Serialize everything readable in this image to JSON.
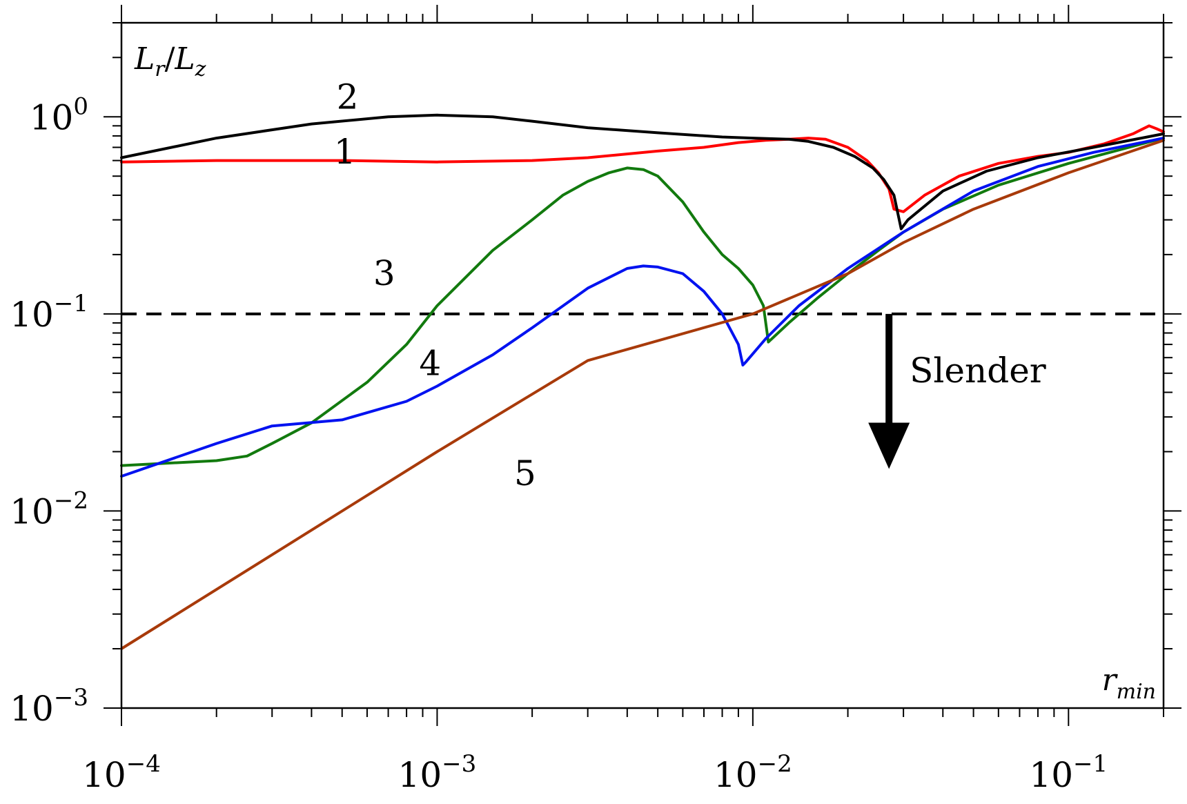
{
  "chart_data": {
    "type": "line",
    "xscale": "log",
    "yscale": "log",
    "xlim": [
      0.0001,
      0.2
    ],
    "ylim": [
      0.001,
      3
    ],
    "xlabel": "r",
    "xlabel_sub": "min",
    "ylabel_num": "L",
    "ylabel_num_sub": "r",
    "ylabel_slash": "/",
    "ylabel_den": "L",
    "ylabel_den_sub": "z",
    "x_ticks": [
      {
        "value": 0.0001,
        "base": "10",
        "exp": "−4"
      },
      {
        "value": 0.001,
        "base": "10",
        "exp": "−3"
      },
      {
        "value": 0.01,
        "base": "10",
        "exp": "−2"
      },
      {
        "value": 0.1,
        "base": "10",
        "exp": "−1"
      }
    ],
    "y_ticks": [
      {
        "value": 0.001,
        "base": "10",
        "exp": "−3"
      },
      {
        "value": 0.01,
        "base": "10",
        "exp": "−2"
      },
      {
        "value": 0.1,
        "base": "10",
        "exp": "−1"
      },
      {
        "value": 1,
        "base": "10",
        "exp": "0"
      }
    ],
    "threshold": {
      "y": 0.1,
      "style": "dashed",
      "color": "#000000"
    },
    "arrow_annotation": {
      "text": "Slender",
      "x": 0.027,
      "y_from": 0.1,
      "y_to": 0.018
    },
    "series": [
      {
        "label": "1",
        "color": "#ff0000",
        "label_pos": [
          0.00051,
          0.58
        ],
        "x": [
          0.0001,
          0.0002,
          0.0005,
          0.001,
          0.002,
          0.003,
          0.005,
          0.007,
          0.009,
          0.011,
          0.013,
          0.015,
          0.017,
          0.02,
          0.023,
          0.025,
          0.027,
          0.028,
          0.03,
          0.035,
          0.045,
          0.06,
          0.08,
          0.1,
          0.13,
          0.16,
          0.18,
          0.19,
          0.2
        ],
        "y": [
          0.59,
          0.6,
          0.6,
          0.59,
          0.6,
          0.62,
          0.67,
          0.7,
          0.74,
          0.76,
          0.77,
          0.78,
          0.77,
          0.7,
          0.6,
          0.52,
          0.43,
          0.34,
          0.33,
          0.4,
          0.5,
          0.58,
          0.63,
          0.66,
          0.73,
          0.82,
          0.9,
          0.87,
          0.84
        ]
      },
      {
        "label": "2",
        "color": "#000000",
        "label_pos": [
          0.00052,
          1.1
        ],
        "x": [
          0.0001,
          0.0002,
          0.0004,
          0.0007,
          0.001,
          0.0015,
          0.002,
          0.003,
          0.005,
          0.008,
          0.01,
          0.013,
          0.015,
          0.018,
          0.021,
          0.024,
          0.026,
          0.028,
          0.0295,
          0.031,
          0.04,
          0.055,
          0.08,
          0.12,
          0.2
        ],
        "y": [
          0.62,
          0.78,
          0.92,
          1.0,
          1.02,
          1.0,
          0.95,
          0.88,
          0.83,
          0.79,
          0.78,
          0.77,
          0.75,
          0.7,
          0.63,
          0.55,
          0.48,
          0.4,
          0.27,
          0.3,
          0.42,
          0.53,
          0.62,
          0.7,
          0.82
        ]
      },
      {
        "label": "3",
        "color": "#127a0e",
        "label_pos": [
          0.00068,
          0.14
        ],
        "x": [
          0.0001,
          0.0002,
          0.00025,
          0.0003,
          0.0004,
          0.0006,
          0.0008,
          0.001,
          0.0015,
          0.002,
          0.0025,
          0.003,
          0.0035,
          0.004,
          0.0045,
          0.005,
          0.006,
          0.007,
          0.008,
          0.009,
          0.01,
          0.0108,
          0.0112,
          0.013,
          0.016,
          0.02,
          0.025,
          0.03,
          0.04,
          0.06,
          0.1,
          0.2
        ],
        "y": [
          0.017,
          0.018,
          0.019,
          0.022,
          0.028,
          0.045,
          0.07,
          0.11,
          0.21,
          0.3,
          0.4,
          0.47,
          0.52,
          0.55,
          0.54,
          0.5,
          0.37,
          0.26,
          0.2,
          0.17,
          0.14,
          0.11,
          0.072,
          0.09,
          0.12,
          0.16,
          0.21,
          0.26,
          0.34,
          0.45,
          0.58,
          0.78
        ]
      },
      {
        "label": "4",
        "color": "#0012f0",
        "label_pos": [
          0.00095,
          0.049
        ],
        "x": [
          0.0001,
          0.0002,
          0.0003,
          0.0005,
          0.0008,
          0.001,
          0.0015,
          0.002,
          0.003,
          0.004,
          0.0045,
          0.005,
          0.006,
          0.007,
          0.008,
          0.009,
          0.0093,
          0.0095,
          0.011,
          0.014,
          0.02,
          0.03,
          0.05,
          0.08,
          0.12,
          0.2
        ],
        "y": [
          0.015,
          0.022,
          0.027,
          0.029,
          0.036,
          0.043,
          0.062,
          0.085,
          0.135,
          0.17,
          0.175,
          0.173,
          0.16,
          0.13,
          0.1,
          0.07,
          0.055,
          0.057,
          0.075,
          0.11,
          0.17,
          0.26,
          0.42,
          0.56,
          0.66,
          0.78
        ]
      },
      {
        "label": "5",
        "color": "#a83a0a",
        "label_pos": [
          0.0019,
          0.0135
        ],
        "x": [
          0.0001,
          0.0003,
          0.001,
          0.003,
          0.01,
          0.02,
          0.03,
          0.05,
          0.1,
          0.2
        ],
        "y": [
          0.002,
          0.006,
          0.02,
          0.058,
          0.1,
          0.16,
          0.23,
          0.34,
          0.52,
          0.76
        ]
      }
    ]
  }
}
